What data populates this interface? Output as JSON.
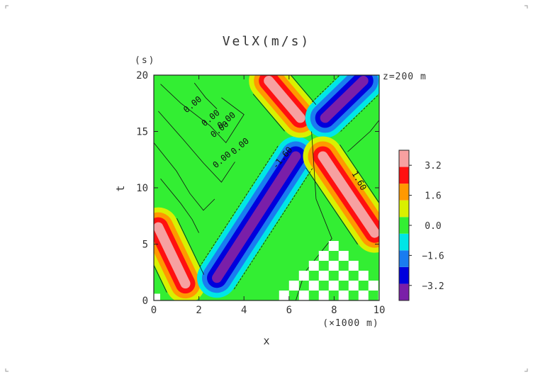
{
  "chart_data": {
    "type": "heatmap",
    "title": "VelX(m/s)",
    "xlabel": "x",
    "ylabel": "t",
    "x_unit_label": "(×1000 m)",
    "y_unit_label": "(s)",
    "annotation": "z=200 m",
    "xlim": [
      0,
      10
    ],
    "ylim": [
      0,
      20
    ],
    "x_ticks": [
      "0",
      "2",
      "4",
      "6",
      "8",
      "10"
    ],
    "y_ticks": [
      "0",
      "5",
      "10",
      "15",
      "20"
    ],
    "contour_labels": [
      "0.00",
      "0.00",
      "0.00",
      "0.00",
      "0.00",
      "0.00",
      "-1.60",
      "1.60"
    ],
    "colorbar": {
      "tick_labels": [
        "3.2",
        "1.6",
        "0.0",
        "−1.6",
        "−3.2"
      ],
      "tick_values": [
        3.2,
        1.6,
        0.0,
        -1.6,
        -3.2
      ],
      "levels": [
        -4.0,
        -3.2,
        -2.4,
        -1.6,
        -0.8,
        0.8,
        1.6,
        2.4,
        3.2,
        4.0
      ],
      "colors": [
        "#7a1fa8",
        "#0000dd",
        "#1a7cf0",
        "#00e6e6",
        "#33ee33",
        "#d9f000",
        "#ff9900",
        "#ff1010",
        "#f7a0a0"
      ]
    },
    "features": [
      {
        "kind": "positive-band",
        "from": [
          0.2,
          6.5
        ],
        "to": [
          1.4,
          1.5
        ],
        "peak": 3.2
      },
      {
        "kind": "negative-band",
        "from": [
          2.8,
          2.0
        ],
        "to": [
          6.3,
          12.8
        ],
        "peak": -3.2
      },
      {
        "kind": "positive-band",
        "from": [
          5.1,
          19.5
        ],
        "to": [
          6.5,
          16.2
        ],
        "peak": 3.2
      },
      {
        "kind": "negative-band",
        "from": [
          9.3,
          19.5
        ],
        "to": [
          7.6,
          16.2
        ],
        "peak": -3.2
      },
      {
        "kind": "positive-band",
        "from": [
          7.5,
          12.8
        ],
        "to": [
          9.8,
          6.0
        ],
        "peak": 3.2
      }
    ]
  }
}
